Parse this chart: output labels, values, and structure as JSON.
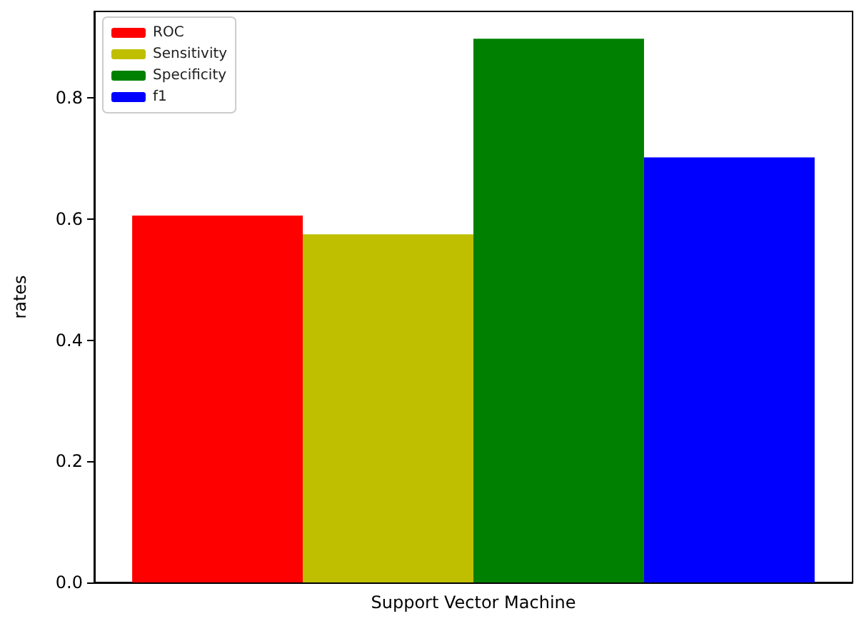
{
  "chart_data": {
    "type": "bar",
    "ylabel": "rates",
    "categories": [
      "Support Vector Machine"
    ],
    "series": [
      {
        "name": "ROC",
        "color": "#ff0000",
        "values": [
          0.606
        ]
      },
      {
        "name": "Sensitivity",
        "color": "#bfbf00",
        "values": [
          0.575
        ]
      },
      {
        "name": "Specificity",
        "color": "#008000",
        "values": [
          0.898
        ]
      },
      {
        "name": "f1",
        "color": "#0000ff",
        "values": [
          0.702
        ]
      }
    ],
    "ylim": [
      0,
      0.943
    ],
    "yticks": [
      {
        "value": 0,
        "label": "0.0"
      },
      0.2,
      0.4,
      0.6,
      0.8
    ],
    "legend": "top left",
    "grid": false
  }
}
